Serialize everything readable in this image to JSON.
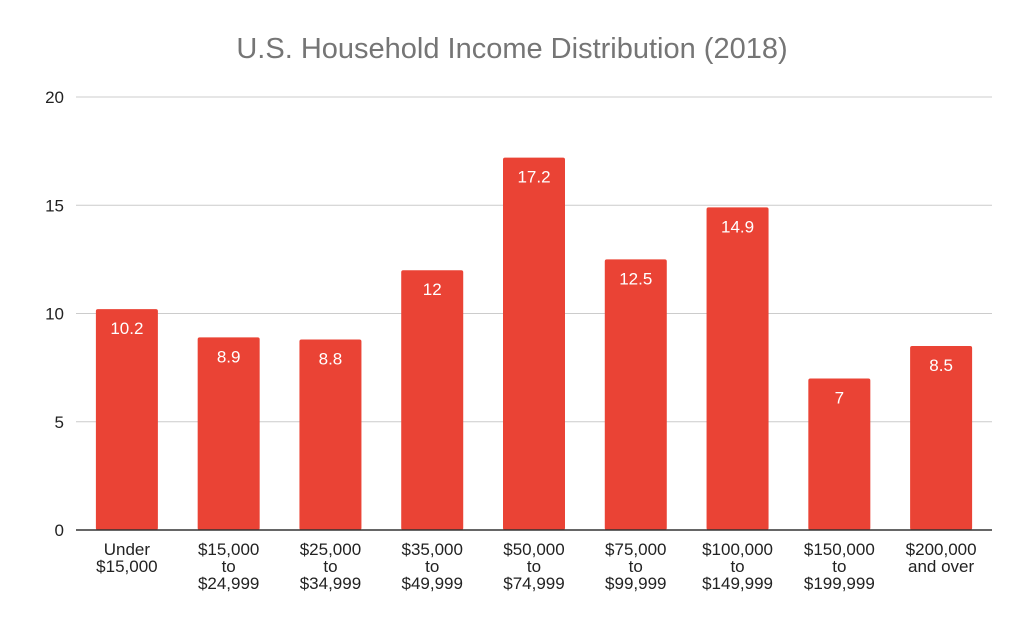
{
  "chart_data": {
    "type": "bar",
    "title": "U.S. Household Income Distribution (2018)",
    "xlabel": "",
    "ylabel": "",
    "ylim": [
      0,
      20
    ],
    "yticks": [
      0,
      5,
      10,
      15,
      20
    ],
    "grid": true,
    "legend": "none",
    "bar_color": "#ea4335",
    "categories": [
      [
        "Under",
        "$15,000"
      ],
      [
        "$15,000",
        "to",
        "$24,999"
      ],
      [
        "$25,000",
        "to",
        "$34,999"
      ],
      [
        "$35,000",
        "to",
        "$49,999"
      ],
      [
        "$50,000",
        "to",
        "$74,999"
      ],
      [
        "$75,000",
        "to",
        "$99,999"
      ],
      [
        "$100,000",
        "to",
        "$149,999"
      ],
      [
        "$150,000",
        "to",
        "$199,999"
      ],
      [
        "$200,000",
        "and over"
      ]
    ],
    "values": [
      10.2,
      8.9,
      8.8,
      12,
      17.2,
      12.5,
      14.9,
      7,
      8.5
    ],
    "data_labels": [
      "10.2",
      "8.9",
      "8.8",
      "12",
      "17.2",
      "12.5",
      "14.9",
      "7",
      "8.5"
    ]
  }
}
